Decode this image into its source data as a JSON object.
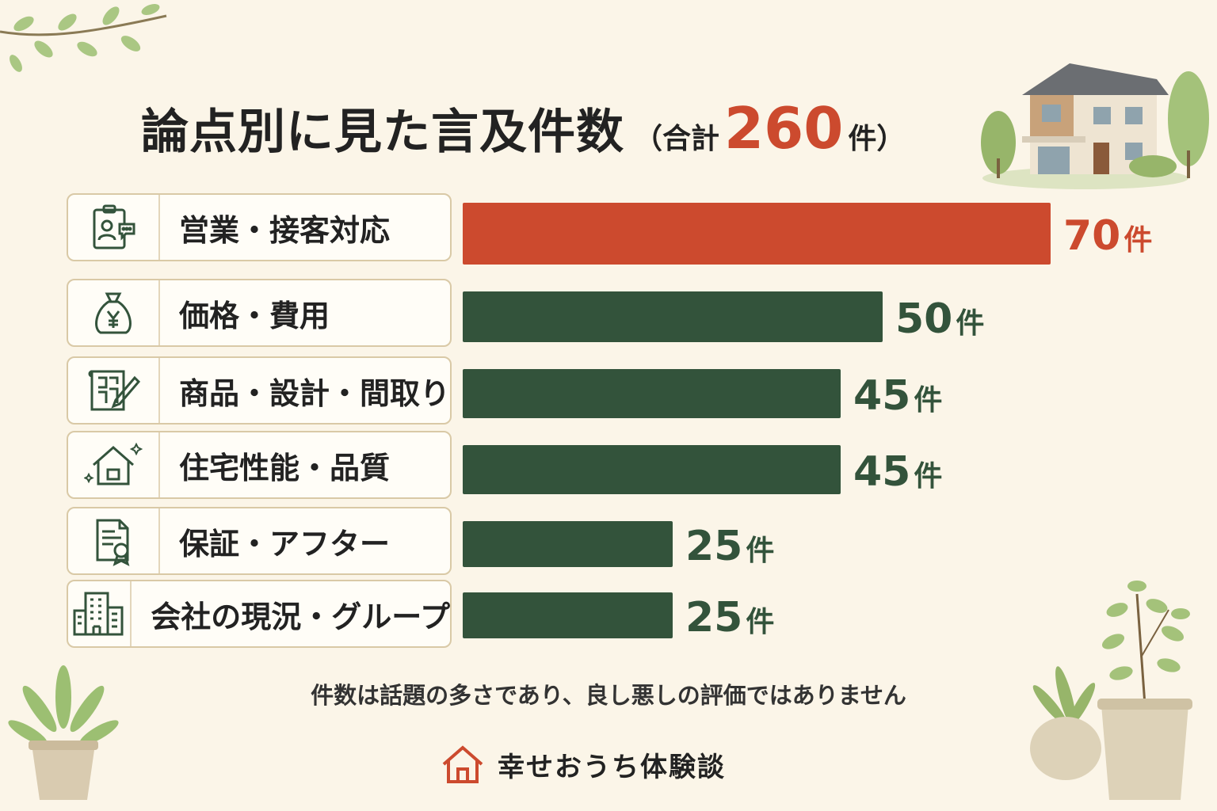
{
  "title": {
    "main": "論点別に見た言及件数",
    "sub_open": "（合計",
    "total": "260",
    "sub_close": "件）"
  },
  "categories": [
    {
      "label": "営業・接客対応",
      "icon": "clipboard-person-chat-icon"
    },
    {
      "label": "価格・費用",
      "icon": "yen-money-bag-icon"
    },
    {
      "label": "商品・設計・間取り",
      "icon": "floor-plan-pencil-icon"
    },
    {
      "label": "住宅性能・品質",
      "icon": "house-sparkle-icon"
    },
    {
      "label": "保証・アフター",
      "icon": "certificate-document-icon"
    },
    {
      "label": "会社の現況・グループ",
      "icon": "office-building-icon"
    }
  ],
  "chart_data": {
    "type": "bar",
    "orientation": "horizontal",
    "title": "論点別に見た言及件数（合計260件）",
    "categories": [
      "営業・接客対応",
      "価格・費用",
      "商品・設計・間取り",
      "住宅性能・品質",
      "保証・アフター",
      "会社の現況・グループ"
    ],
    "values": [
      70,
      50,
      45,
      45,
      25,
      25
    ],
    "unit": "件",
    "highlight_index": 0,
    "colors": {
      "highlight": "#cc4a2e",
      "default": "#33533b"
    }
  },
  "note": "件数は話題の多さであり、良し悪しの評価ではありません",
  "brand": {
    "name": "幸せおうち体験談",
    "icon": "house-logo-icon"
  }
}
